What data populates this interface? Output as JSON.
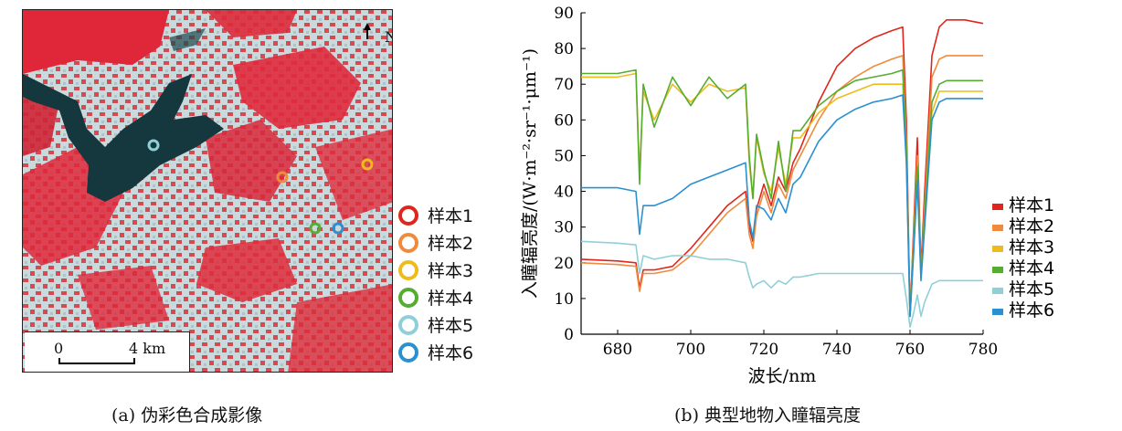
{
  "panel_a": {
    "north_label": "N",
    "scale": {
      "zero": "0",
      "distance": "4 km"
    },
    "legend": [
      {
        "label": "样本1",
        "color": "#e0261c"
      },
      {
        "label": "样本2",
        "color": "#f08a3c"
      },
      {
        "label": "样本3",
        "color": "#eebc1a"
      },
      {
        "label": "样本4",
        "color": "#55ad2f"
      },
      {
        "label": "样本5",
        "color": "#8fd0d8"
      },
      {
        "label": "样本6",
        "color": "#2a90d0"
      }
    ],
    "caption": "(a) 伪彩色合成影像"
  },
  "panel_b_caption": "(b) 典型地物入瞳辐亮度",
  "chart_data": {
    "type": "line",
    "xlabel": "波长/nm",
    "ylabel": "入瞳辐亮度/(W·m⁻²·sr⁻¹·μm⁻¹)",
    "xlim": [
      670,
      780
    ],
    "ylim": [
      0,
      90
    ],
    "x_ticks": [
      680,
      700,
      720,
      740,
      760,
      780
    ],
    "y_ticks": [
      0,
      10,
      20,
      30,
      40,
      50,
      60,
      70,
      80,
      90
    ],
    "legend_position": "right",
    "series": [
      {
        "name": "样本1",
        "color": "#e0261c",
        "x": [
          670,
          680,
          685,
          686,
          687,
          690,
          695,
          700,
          705,
          710,
          715,
          716,
          717,
          718,
          720,
          722,
          724,
          726,
          728,
          730,
          735,
          740,
          745,
          750,
          755,
          758,
          759,
          760,
          761,
          762,
          763,
          764,
          766,
          768,
          770,
          775,
          780
        ],
        "y": [
          21,
          20.5,
          20,
          13,
          18,
          18,
          19,
          24,
          30,
          36,
          40,
          30,
          26,
          35,
          42,
          36,
          44,
          40,
          48,
          52,
          65,
          75,
          80,
          83,
          85,
          86,
          60,
          5,
          30,
          55,
          18,
          40,
          78,
          86,
          88,
          88,
          87
        ]
      },
      {
        "name": "样本2",
        "color": "#f08a3c",
        "x": [
          670,
          680,
          685,
          686,
          687,
          690,
          695,
          700,
          705,
          710,
          715,
          716,
          717,
          718,
          720,
          722,
          724,
          726,
          728,
          730,
          735,
          740,
          745,
          750,
          755,
          758,
          759,
          760,
          761,
          762,
          763,
          764,
          766,
          768,
          770,
          775,
          780
        ],
        "y": [
          20,
          19.5,
          19,
          12,
          17,
          17,
          18,
          22,
          28,
          34,
          38,
          28,
          24,
          33,
          40,
          34,
          42,
          38,
          46,
          50,
          60,
          68,
          72,
          75,
          77,
          78,
          55,
          5,
          28,
          50,
          17,
          36,
          72,
          77,
          78,
          78,
          78
        ]
      },
      {
        "name": "样本3",
        "color": "#eebc1a",
        "x": [
          670,
          680,
          685,
          686,
          687,
          690,
          695,
          700,
          705,
          710,
          715,
          716,
          717,
          718,
          720,
          722,
          724,
          726,
          728,
          730,
          735,
          740,
          745,
          750,
          755,
          758,
          759,
          760,
          761,
          762,
          763,
          764,
          766,
          768,
          770,
          775,
          780
        ],
        "y": [
          72,
          72,
          73,
          45,
          68,
          60,
          70,
          65,
          70,
          68,
          69,
          48,
          38,
          55,
          45,
          40,
          52,
          42,
          55,
          55,
          62,
          66,
          68,
          70,
          70,
          70,
          50,
          5,
          24,
          45,
          16,
          32,
          62,
          68,
          68,
          68,
          68
        ]
      },
      {
        "name": "样本4",
        "color": "#55ad2f",
        "x": [
          670,
          680,
          685,
          686,
          687,
          690,
          695,
          700,
          705,
          710,
          715,
          716,
          717,
          718,
          720,
          722,
          724,
          726,
          728,
          730,
          735,
          740,
          745,
          750,
          755,
          758,
          759,
          760,
          761,
          762,
          763,
          764,
          766,
          768,
          770,
          775,
          780
        ],
        "y": [
          73,
          73,
          74,
          42,
          70,
          58,
          72,
          64,
          72,
          66,
          70,
          50,
          38,
          56,
          46,
          38,
          54,
          40,
          57,
          57,
          64,
          68,
          71,
          72,
          73,
          74,
          52,
          5,
          25,
          47,
          16,
          33,
          65,
          70,
          71,
          71,
          71
        ]
      },
      {
        "name": "样本5",
        "color": "#8fd0d8",
        "x": [
          670,
          680,
          685,
          686,
          687,
          690,
          695,
          700,
          705,
          710,
          715,
          716,
          717,
          718,
          720,
          722,
          724,
          726,
          728,
          730,
          735,
          740,
          745,
          750,
          755,
          758,
          759,
          760,
          761,
          762,
          763,
          764,
          766,
          768,
          770,
          775,
          780
        ],
        "y": [
          26,
          25.5,
          25,
          17,
          22,
          21,
          22,
          22,
          21,
          21,
          20,
          16,
          13,
          14,
          15,
          13,
          15,
          14,
          16,
          16,
          17,
          17,
          17,
          17,
          17,
          17,
          10,
          2,
          6,
          11,
          5,
          9,
          14,
          15,
          15,
          15,
          15
        ]
      },
      {
        "name": "样本6",
        "color": "#2a90d0",
        "x": [
          670,
          680,
          685,
          686,
          687,
          690,
          695,
          700,
          705,
          710,
          715,
          716,
          717,
          718,
          720,
          722,
          724,
          726,
          728,
          730,
          735,
          740,
          745,
          750,
          755,
          758,
          759,
          760,
          761,
          762,
          763,
          764,
          766,
          768,
          770,
          775,
          780
        ],
        "y": [
          41,
          41,
          40,
          28,
          36,
          36,
          38,
          42,
          44,
          46,
          48,
          32,
          27,
          36,
          35,
          32,
          38,
          34,
          42,
          44,
          54,
          60,
          63,
          65,
          66,
          67,
          48,
          5,
          23,
          43,
          15,
          30,
          60,
          65,
          66,
          66,
          66
        ]
      }
    ]
  }
}
